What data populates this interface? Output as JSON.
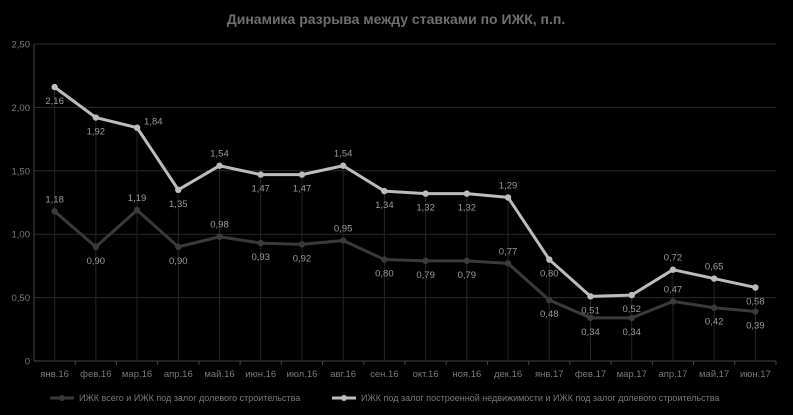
{
  "chart_data": {
    "type": "line",
    "title": "Динамика разрыва между ставками по ИЖК, п.п.",
    "categories": [
      "янв.16",
      "фев.16",
      "мар.16",
      "апр.16",
      "май.16",
      "июн.16",
      "июл.16",
      "авг.16",
      "сен.16",
      "окт.16",
      "ноя.16",
      "дек.16",
      "янв.17",
      "фев.17",
      "мар.17",
      "апр.17",
      "май.17",
      "июн.17"
    ],
    "ylim": [
      0,
      2.5
    ],
    "yticks": [
      "0",
      "0,50",
      "1,00",
      "1,50",
      "2,00",
      "2,50"
    ],
    "ytick_values": [
      0,
      0.5,
      1.0,
      1.5,
      2.0,
      2.5
    ],
    "grid": true,
    "legend_position": "bottom",
    "series": [
      {
        "name": "ИЖК всего и ИЖК под залог долевого строительства",
        "color": "#3a3a3a",
        "values": [
          1.18,
          0.9,
          1.19,
          0.9,
          0.98,
          0.93,
          0.92,
          0.95,
          0.8,
          0.79,
          0.79,
          0.77,
          0.48,
          0.34,
          0.34,
          0.47,
          0.42,
          0.39
        ],
        "labels": [
          "1,18",
          "0,90",
          "1,19",
          "0,90",
          "0,98",
          "0,93",
          "0,92",
          "0,95",
          "0,80",
          "0,79",
          "0,79",
          "0,77",
          "0,48",
          "0,34",
          "0,34",
          "0,47",
          "0,42",
          "0,39"
        ],
        "label_pos": [
          "above",
          "below",
          "above",
          "below",
          "above",
          "below",
          "below",
          "above",
          "below",
          "below",
          "below",
          "above",
          "below",
          "below",
          "below",
          "above",
          "below",
          "below"
        ]
      },
      {
        "name": "ИЖК под залог построенной недвижимости и ИЖК под залог долевого строительства",
        "color": "#bdbdbd",
        "values": [
          2.16,
          1.92,
          1.84,
          1.35,
          1.54,
          1.47,
          1.47,
          1.54,
          1.34,
          1.32,
          1.32,
          1.29,
          0.8,
          0.51,
          0.52,
          0.72,
          0.65,
          0.58
        ],
        "labels": [
          "2,16",
          "1,92",
          "1,84",
          "1,35",
          "1,54",
          "1,47",
          "1,47",
          "1,54",
          "1,34",
          "1,32",
          "1,32",
          "1,29",
          "0,80",
          "0,51",
          "0,52",
          "0,72",
          "0,65",
          "0,58"
        ],
        "label_pos": [
          "below",
          "below",
          "right",
          "below",
          "above",
          "below",
          "below",
          "above",
          "below",
          "below",
          "below",
          "above",
          "below",
          "below",
          "below",
          "above",
          "above",
          "below"
        ]
      }
    ]
  }
}
